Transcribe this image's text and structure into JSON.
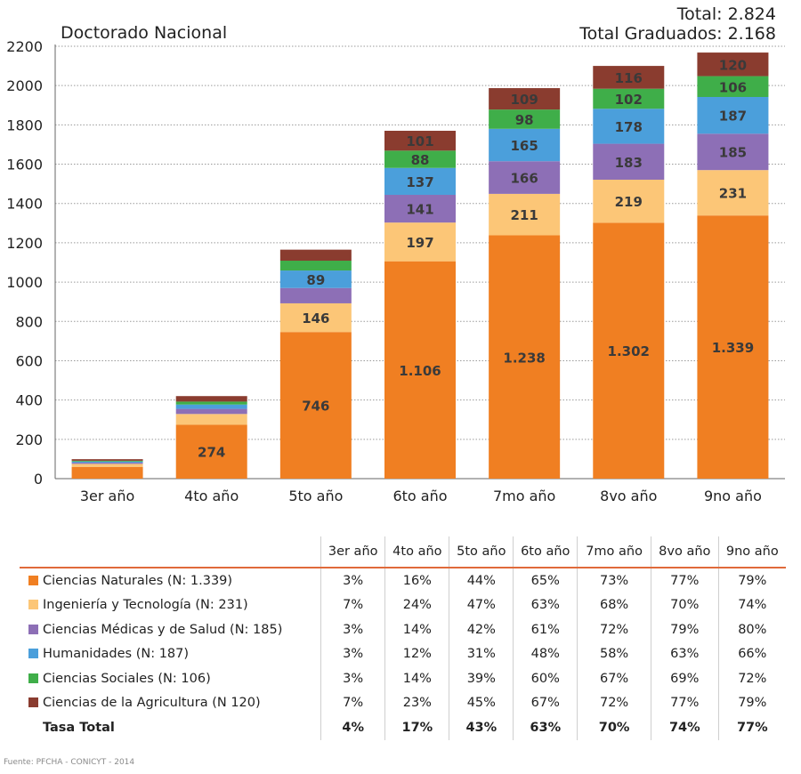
{
  "title": "Doctorado Nacional",
  "totals": {
    "total": "Total: 2.824",
    "graduados": "Total Graduados: 2.168"
  },
  "colors": {
    "naturales": "#f07f22",
    "ingenieria": "#fcc677",
    "medicas": "#8d6fb6",
    "humanidades": "#4b9fdb",
    "sociales": "#3fae49",
    "agricultura": "#8a3c2f",
    "table_rule": "#e06a3a",
    "grid": "#9a9a9a"
  },
  "chart_data": {
    "type": "bar",
    "stacked": true,
    "title": "Doctorado Nacional",
    "categories": [
      "3er año",
      "4to año",
      "5to año",
      "6to año",
      "7mo año",
      "8vo año",
      "9no año"
    ],
    "ylim": [
      0,
      2200
    ],
    "yticks": [
      0,
      200,
      400,
      600,
      800,
      1000,
      1200,
      1400,
      1600,
      1800,
      2000,
      2200
    ],
    "grid": true,
    "series": [
      {
        "key": "naturales",
        "values": [
          60,
          274,
          746,
          1106,
          1238,
          1302,
          1339
        ],
        "labels": [
          "",
          "274",
          "746",
          "1.106",
          "1.238",
          "1.302",
          "1.339"
        ]
      },
      {
        "key": "ingenieria",
        "values": [
          15,
          55,
          146,
          197,
          211,
          219,
          231
        ],
        "labels": [
          "",
          "",
          "146",
          "197",
          "211",
          "219",
          "231"
        ]
      },
      {
        "key": "medicas",
        "values": [
          6,
          26,
          78,
          141,
          166,
          183,
          185
        ],
        "labels": [
          "",
          "",
          "",
          "141",
          "166",
          "183",
          "185"
        ]
      },
      {
        "key": "humanidades",
        "values": [
          6,
          22,
          89,
          137,
          165,
          178,
          187
        ],
        "labels": [
          "",
          "",
          "89",
          "137",
          "165",
          "178",
          "187"
        ]
      },
      {
        "key": "sociales",
        "values": [
          4,
          15,
          50,
          88,
          98,
          102,
          106
        ],
        "labels": [
          "",
          "",
          "",
          "88",
          "98",
          "102",
          "106"
        ]
      },
      {
        "key": "agricultura",
        "values": [
          8,
          28,
          56,
          101,
          109,
          116,
          120
        ],
        "labels": [
          "",
          "",
          "",
          "101",
          "109",
          "116",
          "120"
        ]
      }
    ]
  },
  "table": {
    "columns": [
      "3er año",
      "4to año",
      "5to año",
      "6to año",
      "7mo año",
      "8vo año",
      "9no año"
    ],
    "rows": [
      {
        "key": "naturales",
        "label": "Ciencias Naturales (N: 1.339)",
        "values": [
          "3%",
          "16%",
          "44%",
          "65%",
          "73%",
          "77%",
          "79%"
        ]
      },
      {
        "key": "ingenieria",
        "label": "Ingeniería y Tecnología (N: 231)",
        "values": [
          "7%",
          "24%",
          "47%",
          "63%",
          "68%",
          "70%",
          "74%"
        ]
      },
      {
        "key": "medicas",
        "label": "Ciencias Médicas y de Salud (N: 185)",
        "values": [
          "3%",
          "14%",
          "42%",
          "61%",
          "72%",
          "79%",
          "80%"
        ]
      },
      {
        "key": "humanidades",
        "label": "Humanidades (N: 187)",
        "values": [
          "3%",
          "12%",
          "31%",
          "48%",
          "58%",
          "63%",
          "66%"
        ]
      },
      {
        "key": "sociales",
        "label": "Ciencias Sociales (N: 106)",
        "values": [
          "3%",
          "14%",
          "39%",
          "60%",
          "67%",
          "69%",
          "72%"
        ]
      },
      {
        "key": "agricultura",
        "label": "Ciencias de la Agricultura (N 120)",
        "values": [
          "7%",
          "23%",
          "45%",
          "67%",
          "72%",
          "77%",
          "79%"
        ]
      }
    ],
    "total": {
      "label": "Tasa Total",
      "values": [
        "4%",
        "17%",
        "43%",
        "63%",
        "70%",
        "74%",
        "77%"
      ]
    }
  },
  "source": "Fuente: PFCHA - CONICYT - 2014"
}
